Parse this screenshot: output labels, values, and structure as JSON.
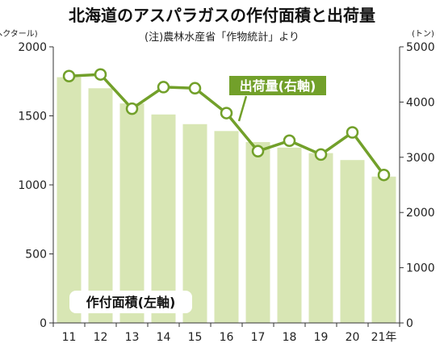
{
  "chart_data": {
    "type": "bar+line",
    "title": "北海道のアスパラガスの作付面積と出荷量",
    "subtitle": "(注)農林水産省「作物統計」より",
    "categories": [
      "11",
      "12",
      "13",
      "14",
      "15",
      "16",
      "17",
      "18",
      "19",
      "20",
      "21年"
    ],
    "series": [
      {
        "name": "作付面積(左軸)",
        "type": "bar",
        "axis": "left",
        "values": [
          1780,
          1700,
          1590,
          1510,
          1440,
          1390,
          1310,
          1270,
          1230,
          1180,
          1060
        ]
      },
      {
        "name": "出荷量(右軸)",
        "type": "line",
        "axis": "right",
        "values": [
          4470,
          4500,
          3880,
          4270,
          4250,
          3800,
          3110,
          3300,
          3050,
          3450,
          2680
        ]
      }
    ],
    "y_left": {
      "unit": "(ヘクタール)",
      "ylim": [
        0,
        2000
      ],
      "ticks": [
        "0",
        "500",
        "1000",
        "1500",
        "2000"
      ]
    },
    "y_right": {
      "unit": "(トン)",
      "ylim": [
        0,
        5000
      ],
      "ticks": [
        "0",
        "1000",
        "2000",
        "3000",
        "4000",
        "5000"
      ]
    },
    "grid": false,
    "colors": {
      "bar": "#d8e6b4",
      "line": "#72a02a",
      "marker_fill": "#ffffff",
      "axis": "#333333",
      "label_bg": "#72a02a",
      "label_text": "#ffffff"
    }
  }
}
